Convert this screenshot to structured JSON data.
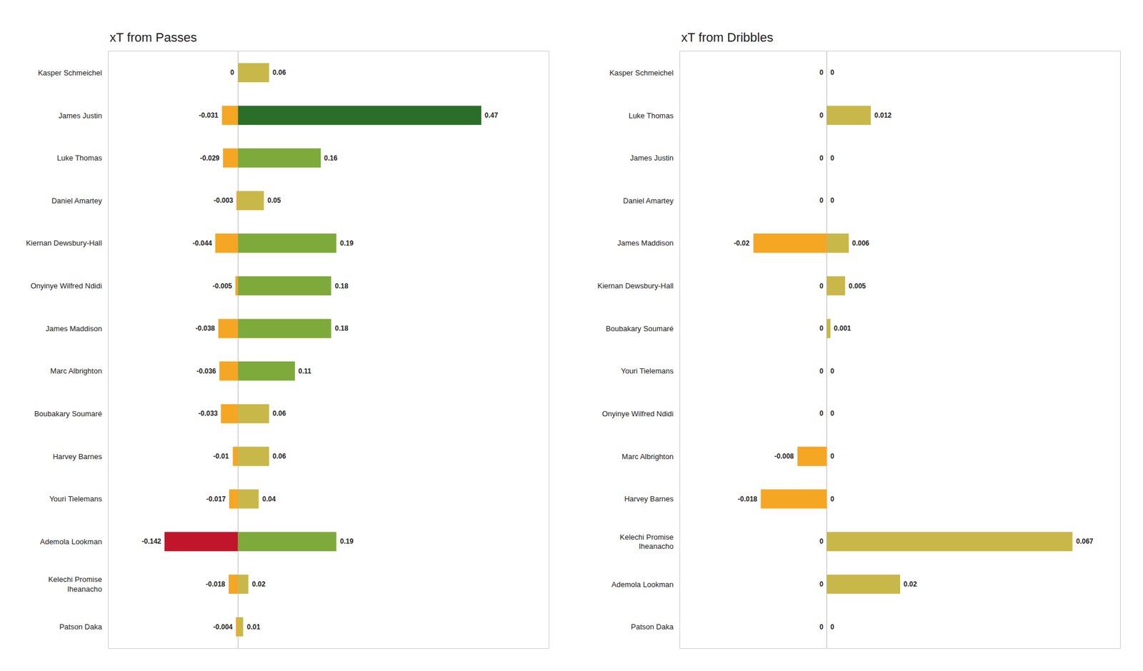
{
  "chart_data": [
    {
      "type": "bar",
      "orientation": "horizontal",
      "title": "xT from Passes",
      "categories": [
        "Kasper Schmeichel",
        "James Justin",
        "Luke Thomas",
        "Daniel Amartey",
        "Kiernan Dewsbury-Hall",
        "Onyinye Wilfred Ndidi",
        "James Maddison",
        "Marc Albrighton",
        "Boubakary Soumaré",
        "Harvey Barnes",
        "Youri Tielemans",
        "Ademola Lookman",
        "Kelechi Promise\nIheanacho",
        "Patson Daka"
      ],
      "series": [
        {
          "values": [
            0,
            -0.031,
            -0.029,
            -0.003,
            -0.044,
            -0.005,
            -0.038,
            -0.036,
            -0.033,
            -0.01,
            -0.017,
            -0.142,
            -0.018,
            -0.004
          ],
          "colors": [
            "#f5a623",
            "#f5a623",
            "#f5a623",
            "#f5a623",
            "#f5a623",
            "#f5a623",
            "#f5a623",
            "#f5a623",
            "#f5a623",
            "#f5a623",
            "#f5a623",
            "#c0152b",
            "#f5a623",
            "#f5a623"
          ]
        },
        {
          "values": [
            0.06,
            0.47,
            0.16,
            0.05,
            0.19,
            0.18,
            0.18,
            0.11,
            0.06,
            0.06,
            0.04,
            0.19,
            0.02,
            0.01
          ],
          "colors": [
            "#c8b84a",
            "#2a6e2a",
            "#7daa3a",
            "#c8b84a",
            "#7daa3a",
            "#7daa3a",
            "#7daa3a",
            "#7daa3a",
            "#c8b84a",
            "#c8b84a",
            "#c8b84a",
            "#7daa3a",
            "#c8b84a",
            "#c8b84a"
          ]
        }
      ],
      "xlim": [
        -0.25,
        0.6
      ],
      "tick_labels": "y",
      "data_labels": true,
      "grid": false
    },
    {
      "type": "bar",
      "orientation": "horizontal",
      "title": "xT from Dribbles",
      "categories": [
        "Kasper Schmeichel",
        "Luke Thomas",
        "James Justin",
        "Daniel Amartey",
        "James Maddison",
        "Kiernan Dewsbury-Hall",
        "Boubakary Soumaré",
        "Youri Tielemans",
        "Onyinye Wilfred Ndidi",
        "Marc Albrighton",
        "Harvey Barnes",
        "Kelechi Promise\nIheanacho",
        "Ademola Lookman",
        "Patson Daka"
      ],
      "series": [
        {
          "values": [
            0,
            0,
            0,
            0,
            -0.02,
            0,
            0,
            0,
            0,
            -0.008,
            -0.018,
            0,
            0,
            0
          ],
          "colors": [
            "#f5a623",
            "#f5a623",
            "#f5a623",
            "#f5a623",
            "#f5a623",
            "#f5a623",
            "#f5a623",
            "#f5a623",
            "#f5a623",
            "#f5a623",
            "#f5a623",
            "#f5a623",
            "#f5a623",
            "#f5a623"
          ]
        },
        {
          "values": [
            0,
            0.012,
            0,
            0,
            0.006,
            0.005,
            0.001,
            0,
            0,
            0,
            0,
            0.067,
            0.02,
            0
          ],
          "colors": [
            "#c8b84a",
            "#c8b84a",
            "#c8b84a",
            "#c8b84a",
            "#c8b84a",
            "#c8b84a",
            "#c8b84a",
            "#c8b84a",
            "#c8b84a",
            "#c8b84a",
            "#c8b84a",
            "#c8b84a",
            "#c8b84a",
            "#c8b84a"
          ]
        }
      ],
      "xlim": [
        -0.04,
        0.08
      ],
      "tick_labels": "y",
      "data_labels": true,
      "grid": false
    }
  ]
}
